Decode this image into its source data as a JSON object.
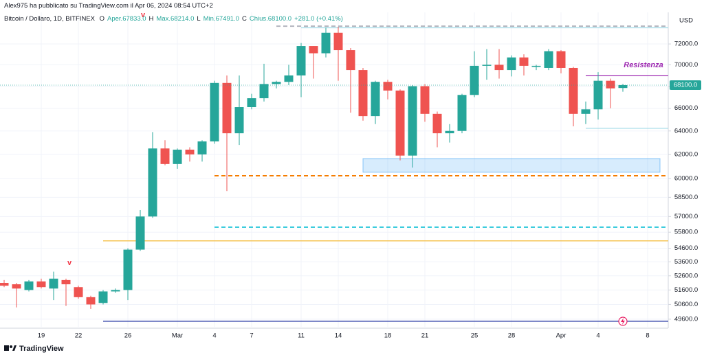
{
  "header": {
    "author_line": "Alex975 ha pubblicato su TradingView.com il Apr 06, 2024 08:54 UTC+2",
    "symbol": "Bitcoin / Dollaro, 1D, BITFINEX",
    "ohlc": [
      {
        "key": "O",
        "text": "Aper.67833.0"
      },
      {
        "key": "H",
        "text": "Max.68214.0"
      },
      {
        "key": "L",
        "text": "Min.67491.0"
      },
      {
        "key": "C",
        "text": "Chius.68100.0"
      }
    ],
    "change": "+281.0 (+0.41%)"
  },
  "footer": {
    "brand": "TradingView"
  },
  "chart_data": {
    "type": "candlestick",
    "currency": "USD",
    "log_scale": true,
    "grid": true,
    "up_color": "#26a69a",
    "down_color": "#ef5350",
    "categories": [
      null,
      null,
      null,
      "19",
      null,
      null,
      "22",
      null,
      null,
      null,
      "26",
      null,
      null,
      null,
      "Mar",
      null,
      null,
      "4",
      null,
      null,
      "7",
      null,
      null,
      null,
      "11",
      null,
      null,
      "14",
      null,
      null,
      null,
      "18",
      null,
      null,
      "21",
      null,
      null,
      null,
      "25",
      null,
      null,
      "28",
      null,
      null,
      null,
      "Apr",
      null,
      null,
      "4",
      null,
      null,
      null,
      "8",
      null
    ],
    "open": [
      52100,
      52000,
      51600,
      52200,
      51700,
      52300,
      51800,
      51100,
      50700,
      51500,
      51600,
      54500,
      57000,
      62500,
      61200,
      62400,
      62000,
      63100,
      68300,
      63800,
      66100,
      66900,
      68200,
      68400,
      69000,
      71800,
      71100,
      73100,
      71400,
      69500,
      65300,
      68400,
      67600,
      61900,
      68000,
      65500,
      63800,
      64000,
      67200,
      69900,
      70000,
      69500,
      70700,
      69800,
      69700,
      71300,
      69700,
      65500,
      65900,
      68500,
      67833,
      null,
      null,
      null
    ],
    "high": [
      52300,
      52100,
      52300,
      52400,
      52900,
      52400,
      51900,
      51200,
      51600,
      51700,
      54600,
      57500,
      63900,
      63200,
      62500,
      62600,
      63200,
      68500,
      69000,
      69000,
      67300,
      70100,
      68500,
      70000,
      72100,
      71800,
      73600,
      73700,
      71600,
      69700,
      68500,
      68600,
      67700,
      68100,
      68200,
      65700,
      64600,
      67300,
      71300,
      71500,
      71500,
      70900,
      71000,
      70000,
      71500,
      71400,
      69800,
      66600,
      69300,
      68700,
      68214,
      null,
      null,
      null
    ],
    "low": [
      51800,
      50400,
      51500,
      51700,
      50900,
      50500,
      51000,
      50300,
      50600,
      51400,
      50900,
      54400,
      56900,
      61100,
      60800,
      61400,
      61400,
      62900,
      59000,
      62800,
      65900,
      66600,
      67800,
      68100,
      67000,
      68700,
      70700,
      68500,
      65600,
      64900,
      64600,
      66800,
      61500,
      60900,
      64800,
      62600,
      63000,
      63800,
      67000,
      68600,
      68700,
      68900,
      69000,
      69500,
      69500,
      69200,
      64400,
      64600,
      65000,
      66000,
      67491,
      null,
      null,
      null
    ],
    "close": [
      51900,
      51700,
      52200,
      51800,
      52400,
      52000,
      51100,
      50600,
      51500,
      51600,
      54500,
      57000,
      62500,
      61200,
      62400,
      62000,
      63100,
      68300,
      63800,
      66100,
      66900,
      68200,
      68400,
      69000,
      71800,
      71100,
      73100,
      71400,
      69500,
      65300,
      68400,
      67600,
      61900,
      68000,
      65500,
      63800,
      64000,
      67200,
      69900,
      70000,
      69500,
      70700,
      69900,
      69900,
      71300,
      69700,
      65500,
      65900,
      68500,
      67800,
      68100,
      null,
      null,
      null
    ],
    "last_price": {
      "value": 68100,
      "label": "68100.0"
    },
    "ylim": [
      49000,
      75150
    ],
    "yticks": [
      {
        "value": 72000,
        "label": "72000.0"
      },
      {
        "value": 70000,
        "label": "70000.0"
      },
      {
        "value": 68000,
        "label": "68000.0"
      },
      {
        "value": 66000,
        "label": "66000.0"
      },
      {
        "value": 64000,
        "label": "64000.0"
      },
      {
        "value": 62000,
        "label": "62000.0"
      },
      {
        "value": 60000,
        "label": "60000.0"
      },
      {
        "value": 58500,
        "label": "58500.0"
      },
      {
        "value": 57000,
        "label": "57000.0"
      },
      {
        "value": 55800,
        "label": "55800.0"
      },
      {
        "value": 54600,
        "label": "54600.0"
      },
      {
        "value": 53600,
        "label": "53600.0"
      },
      {
        "value": 52600,
        "label": "52600.0"
      },
      {
        "value": 51600,
        "label": "51600.0"
      },
      {
        "value": 50600,
        "label": "50600.0"
      },
      {
        "value": 49600,
        "label": "49600.0"
      }
    ],
    "levels": [
      {
        "value": 73760,
        "color": "#b2b5be",
        "style": "dashed",
        "from": 22
      },
      {
        "value": 73600,
        "color": "#a5dce8",
        "style": "solid",
        "from": 24
      },
      {
        "value": 68990,
        "color": "#9c27b0",
        "style": "solid",
        "from": 47
      },
      {
        "value": 64230,
        "color": "#a5dce8",
        "style": "solid",
        "from": 47
      },
      {
        "value": 60230,
        "color": "#f57c00",
        "style": "dashed",
        "from": 17
      },
      {
        "value": 56180,
        "color": "#26c6da",
        "style": "dashed",
        "from": 17
      },
      {
        "value": 55150,
        "color": "#f5c04a",
        "style": "solid",
        "from": 8
      },
      {
        "value": 49460,
        "color": "#3949ab",
        "style": "solid",
        "from": 8
      }
    ],
    "zone": {
      "low": 60520,
      "high": 61650,
      "from": 29,
      "to": 53,
      "color": "#2196f3"
    },
    "annotations": [
      {
        "text": "v",
        "color": "#f23645"
      },
      {
        "text": "v",
        "color": "#f23645"
      },
      {
        "text": "Resistenza",
        "color": "#9c27b0"
      }
    ]
  }
}
